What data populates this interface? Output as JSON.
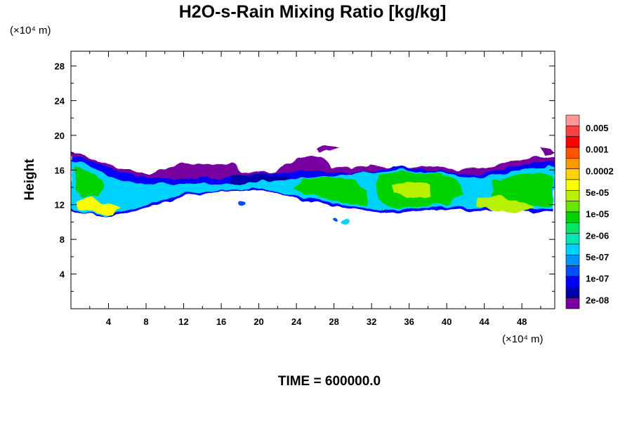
{
  "chart_data": {
    "type": "heatmap",
    "title": "H2O-s-Rain Mixing Ratio [kg/kg]",
    "xlabel": "",
    "ylabel": "Height",
    "x_unit": "(×10⁴ m)",
    "y_unit": "(×10⁴ m)",
    "xlim": [
      0,
      51.5
    ],
    "ylim": [
      0,
      29.7
    ],
    "x_ticks": [
      "4",
      "8",
      "12",
      "16",
      "20",
      "24",
      "28",
      "32",
      "36",
      "40",
      "44",
      "48"
    ],
    "y_ticks": [
      "4",
      "8",
      "12",
      "16",
      "20",
      "24",
      "28"
    ],
    "colorbar": {
      "labels": [
        "0.005",
        "0.001",
        "0.0002",
        "5e-05",
        "1e-05",
        "2e-06",
        "5e-07",
        "1e-07",
        "2e-08"
      ],
      "colors": [
        "#ff9999",
        "#ff4040",
        "#ff0000",
        "#ff5500",
        "#ff9900",
        "#ffd500",
        "#ffff00",
        "#b9f000",
        "#66e600",
        "#00d200",
        "#00e666",
        "#00e6b4",
        "#00d2ff",
        "#0096ff",
        "#0050ff",
        "#0000ff",
        "#0000aa",
        "#7800a0"
      ]
    },
    "regions": [
      {
        "x": [
          0,
          51.5
        ],
        "y": [
          12,
          16.5
        ],
        "level": "2e-08"
      },
      {
        "x": [
          0,
          6
        ],
        "y": [
          10.8,
          17
        ],
        "level": "1e-07"
      },
      {
        "x": [
          22,
          38
        ],
        "y": [
          12.2,
          16.2
        ],
        "level": "1e-07"
      },
      {
        "x": [
          43,
          51.5
        ],
        "y": [
          11,
          17
        ],
        "level": "1e-07"
      },
      {
        "x": [
          1,
          6
        ],
        "y": [
          11,
          13
        ],
        "level": "5e-05"
      },
      {
        "x": [
          24,
          38
        ],
        "y": [
          12.5,
          15.8
        ],
        "level": "2e-06"
      },
      {
        "x": [
          44,
          51.5
        ],
        "y": [
          11.2,
          13
        ],
        "level": "5e-05"
      }
    ],
    "annotation": "TIME = 600000.0"
  }
}
